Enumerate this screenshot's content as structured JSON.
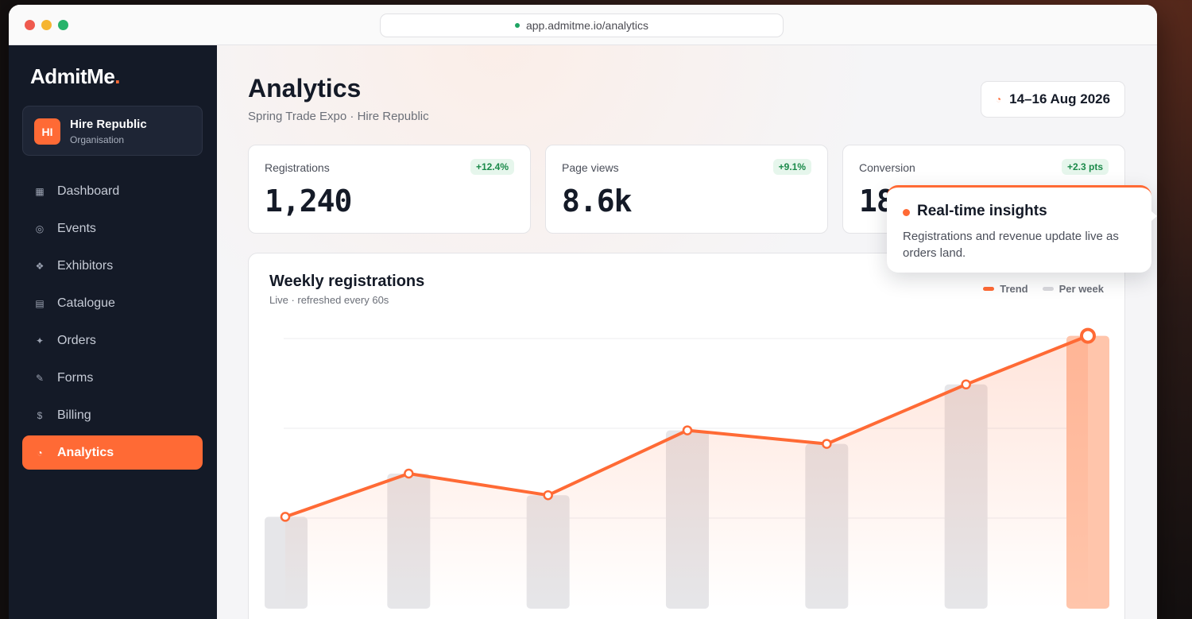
{
  "browser": {
    "url": "app.admitme.io/analytics"
  },
  "sidebar": {
    "logo": {
      "main": "AdmitMe",
      "accent": "."
    },
    "org": {
      "initials": "HI",
      "name": "Hire Republic",
      "role": "Organisation"
    },
    "items": [
      {
        "label": "Dashboard",
        "icon": "▦",
        "active": false
      },
      {
        "label": "Events",
        "icon": "◎",
        "active": false
      },
      {
        "label": "Exhibitors",
        "icon": "❖",
        "active": false
      },
      {
        "label": "Catalogue",
        "icon": "▤",
        "active": false
      },
      {
        "label": "Orders",
        "icon": "✦",
        "active": false
      },
      {
        "label": "Forms",
        "icon": "✎",
        "active": false
      },
      {
        "label": "Billing",
        "icon": "$",
        "active": false
      },
      {
        "label": "Analytics",
        "icon": "◔",
        "active": true
      }
    ]
  },
  "header": {
    "title": "Analytics",
    "subtitle": "Spring Trade Expo · Hire Republic",
    "date_range": "14–16 Aug 2026"
  },
  "kpis": [
    {
      "label": "Registrations",
      "value": "1,240",
      "change": "+12.4%"
    },
    {
      "label": "Page views",
      "value": "8.6k",
      "change": "+9.1%"
    },
    {
      "label": "Conversion",
      "value": "18",
      "change": "+2.3 pts"
    }
  ],
  "chart": {
    "title": "Weekly registrations",
    "subtitle": "Live · refreshed every 60s",
    "legend": [
      {
        "label": "Trend",
        "color": "#ff6a35"
      },
      {
        "label": "Per week",
        "color": "#d9d9dd"
      }
    ]
  },
  "chart_data": {
    "type": "bar",
    "title": "Weekly registrations",
    "ylim": [
      0,
      100
    ],
    "series": [
      {
        "name": "Per week",
        "values": [
          34,
          50,
          42,
          66,
          61,
          83,
          101
        ]
      },
      {
        "name": "Trend",
        "values": [
          34,
          50,
          42,
          66,
          61,
          83,
          101
        ]
      }
    ],
    "grid": true,
    "legend_position": "top-right",
    "colors": {
      "bars": "#e6e6e9",
      "last_bar": "#ffc5ab",
      "line": "#ff6a35"
    }
  },
  "tooltip": {
    "title": "Real-time insights",
    "body": "Registrations and revenue update live as orders land."
  }
}
